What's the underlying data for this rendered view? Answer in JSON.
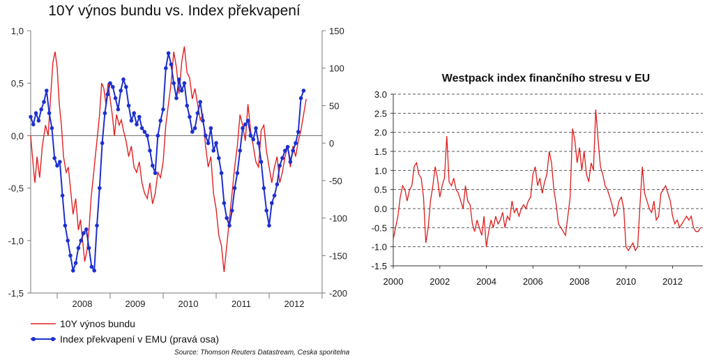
{
  "chart_data": [
    {
      "type": "line",
      "title": "10Y výnos bundu vs. Index překvapení",
      "x_tick_labels": [
        "2008",
        "2009",
        "2010",
        "2011",
        "2012"
      ],
      "y_left_ticks": [
        "1,0",
        "0,5",
        "0,0",
        "-0,5",
        "-1,0",
        "-1,5"
      ],
      "y_right_ticks": [
        "150",
        "100",
        "50",
        "0",
        "-50",
        "-100",
        "-150",
        "-200"
      ],
      "ylim_left": [
        -1.5,
        1.0
      ],
      "ylim_right": [
        -200,
        150
      ],
      "xlim": [
        2007.5,
        2013.0
      ],
      "grid": false,
      "legend_position": "bottom-left",
      "source": "Source: Thomson Reuters Datastream, Ceska sporitelna",
      "series": [
        {
          "name": "10Y výnos bundu",
          "axis": "left",
          "color": "#e02020",
          "x": [
            2007.5,
            2007.55,
            2007.58,
            2007.62,
            2007.67,
            2007.72,
            2007.78,
            2007.83,
            2007.88,
            2007.92,
            2007.96,
            2008.0,
            2008.04,
            2008.08,
            2008.12,
            2008.17,
            2008.21,
            2008.25,
            2008.3,
            2008.35,
            2008.4,
            2008.44,
            2008.48,
            2008.52,
            2008.56,
            2008.6,
            2008.64,
            2008.68,
            2008.72,
            2008.76,
            2008.8,
            2008.84,
            2008.88,
            2008.92,
            2008.96,
            2009.0,
            2009.04,
            2009.08,
            2009.12,
            2009.17,
            2009.21,
            2009.25,
            2009.3,
            2009.35,
            2009.4,
            2009.45,
            2009.5,
            2009.55,
            2009.6,
            2009.65,
            2009.7,
            2009.75,
            2009.8,
            2009.85,
            2009.9,
            2009.95,
            2010.0,
            2010.05,
            2010.1,
            2010.15,
            2010.2,
            2010.25,
            2010.3,
            2010.35,
            2010.4,
            2010.45,
            2010.5,
            2010.55,
            2010.6,
            2010.65,
            2010.7,
            2010.75,
            2010.8,
            2010.85,
            2010.9,
            2010.95,
            2011.0,
            2011.05,
            2011.1,
            2011.15,
            2011.2,
            2011.25,
            2011.3,
            2011.35,
            2011.4,
            2011.45,
            2011.5,
            2011.55,
            2011.6,
            2011.65,
            2011.7,
            2011.75,
            2011.8,
            2011.85,
            2011.9,
            2011.95,
            2012.0,
            2012.05,
            2012.1,
            2012.15,
            2012.2,
            2012.25,
            2012.3,
            2012.35,
            2012.4,
            2012.45,
            2012.5,
            2012.55,
            2012.6,
            2012.65,
            2012.7
          ],
          "values": [
            0.0,
            -0.3,
            -0.45,
            -0.2,
            -0.4,
            -0.1,
            0.1,
            0.0,
            0.4,
            0.7,
            0.8,
            0.65,
            0.3,
            0.1,
            -0.2,
            -0.35,
            -0.3,
            -0.5,
            -0.75,
            -0.6,
            -0.9,
            -0.8,
            -1.0,
            -1.2,
            -1.1,
            -0.9,
            -0.6,
            -0.4,
            -0.2,
            0.0,
            0.2,
            0.5,
            0.45,
            0.3,
            0.5,
            0.35,
            0.2,
            0.0,
            0.2,
            0.1,
            0.15,
            0.05,
            -0.05,
            -0.2,
            -0.1,
            -0.3,
            -0.35,
            -0.25,
            -0.45,
            -0.55,
            -0.6,
            -0.45,
            -0.65,
            -0.55,
            -0.35,
            -0.4,
            -0.25,
            0.1,
            0.3,
            0.5,
            0.8,
            0.65,
            0.4,
            0.7,
            0.85,
            0.6,
            0.55,
            0.35,
            0.45,
            0.3,
            0.15,
            0.2,
            -0.1,
            -0.3,
            -0.2,
            -0.55,
            -0.7,
            -0.95,
            -1.05,
            -1.3,
            -1.05,
            -0.8,
            -0.55,
            -0.3,
            -0.1,
            0.2,
            0.1,
            -0.05,
            0.3,
            0.05,
            -0.1,
            -0.25,
            -0.3,
            0.05,
            0.1,
            -0.15,
            -0.3,
            -0.45,
            -0.3,
            -0.2,
            -0.45,
            -0.35,
            -0.2,
            -0.1,
            -0.3,
            -0.1,
            -0.2,
            -0.05,
            0.05,
            0.2,
            0.35
          ]
        },
        {
          "name": "Index překvapení v EMU (pravá osa)",
          "axis": "right",
          "color": "#1c2fcf",
          "x": [
            2007.5,
            2007.55,
            2007.6,
            2007.65,
            2007.7,
            2007.75,
            2007.8,
            2007.85,
            2007.9,
            2007.95,
            2008.0,
            2008.05,
            2008.1,
            2008.15,
            2008.2,
            2008.25,
            2008.3,
            2008.35,
            2008.4,
            2008.45,
            2008.5,
            2008.55,
            2008.6,
            2008.65,
            2008.7,
            2008.75,
            2008.8,
            2008.85,
            2008.9,
            2008.95,
            2009.0,
            2009.05,
            2009.1,
            2009.15,
            2009.2,
            2009.25,
            2009.3,
            2009.35,
            2009.4,
            2009.45,
            2009.5,
            2009.55,
            2009.6,
            2009.65,
            2009.7,
            2009.75,
            2009.8,
            2009.85,
            2009.9,
            2009.95,
            2010.0,
            2010.05,
            2010.1,
            2010.15,
            2010.2,
            2010.25,
            2010.3,
            2010.35,
            2010.4,
            2010.45,
            2010.5,
            2010.55,
            2010.6,
            2010.65,
            2010.7,
            2010.75,
            2010.8,
            2010.85,
            2010.9,
            2010.95,
            2011.0,
            2011.05,
            2011.1,
            2011.15,
            2011.2,
            2011.25,
            2011.3,
            2011.35,
            2011.4,
            2011.45,
            2011.5,
            2011.55,
            2011.6,
            2011.65,
            2011.7,
            2011.75,
            2011.8,
            2011.85,
            2011.9,
            2011.95,
            2012.0,
            2012.05,
            2012.1,
            2012.15,
            2012.2,
            2012.25,
            2012.3,
            2012.35,
            2012.4,
            2012.45,
            2012.5,
            2012.55,
            2012.6,
            2012.65
          ],
          "values": [
            35,
            25,
            40,
            30,
            45,
            55,
            70,
            40,
            20,
            -20,
            -30,
            -25,
            -70,
            -110,
            -130,
            -150,
            -170,
            -160,
            -140,
            -130,
            -120,
            -115,
            -140,
            -165,
            -170,
            -110,
            -60,
            0,
            40,
            65,
            80,
            75,
            60,
            45,
            70,
            85,
            75,
            50,
            30,
            40,
            25,
            35,
            20,
            15,
            10,
            -10,
            -30,
            -40,
            10,
            30,
            45,
            100,
            120,
            105,
            80,
            60,
            85,
            70,
            80,
            50,
            35,
            15,
            20,
            40,
            55,
            30,
            10,
            0,
            20,
            -10,
            0,
            -20,
            -40,
            -80,
            -100,
            -110,
            -90,
            -60,
            -40,
            -10,
            20,
            25,
            30,
            10,
            5,
            20,
            0,
            -25,
            -60,
            -90,
            -110,
            -80,
            -70,
            -55,
            -30,
            -20,
            -10,
            -5,
            -25,
            -10,
            0,
            15,
            60,
            70
          ]
        }
      ]
    },
    {
      "type": "line",
      "title": "Westpack index finančního stresu v EU",
      "x_tick_labels": [
        "2000",
        "2002",
        "2004",
        "2006",
        "2008",
        "2010",
        "2012"
      ],
      "y_tick_labels": [
        "3.0",
        "2.5",
        "2.0",
        "1.5",
        "1.0",
        "0.5",
        "0.0",
        "-0.5",
        "-1.0",
        "-1.5"
      ],
      "ylim": [
        -1.5,
        3.0
      ],
      "xlim": [
        2000.0,
        2013.3
      ],
      "grid": "horizontal dashed",
      "series": [
        {
          "color": "#dd1a1a",
          "x": [
            2000.0,
            2000.1,
            2000.2,
            2000.3,
            2000.4,
            2000.5,
            2000.6,
            2000.7,
            2000.8,
            2000.9,
            2001.0,
            2001.1,
            2001.2,
            2001.3,
            2001.4,
            2001.5,
            2001.6,
            2001.7,
            2001.8,
            2001.9,
            2002.0,
            2002.1,
            2002.2,
            2002.3,
            2002.4,
            2002.5,
            2002.6,
            2002.7,
            2002.8,
            2002.9,
            2003.0,
            2003.1,
            2003.2,
            2003.3,
            2003.4,
            2003.5,
            2003.6,
            2003.7,
            2003.8,
            2003.9,
            2004.0,
            2004.1,
            2004.2,
            2004.3,
            2004.4,
            2004.5,
            2004.6,
            2004.7,
            2004.8,
            2004.9,
            2005.0,
            2005.1,
            2005.2,
            2005.3,
            2005.4,
            2005.5,
            2005.6,
            2005.7,
            2005.8,
            2005.9,
            2006.0,
            2006.1,
            2006.2,
            2006.3,
            2006.4,
            2006.5,
            2006.6,
            2006.7,
            2006.8,
            2006.9,
            2007.0,
            2007.1,
            2007.2,
            2007.3,
            2007.4,
            2007.5,
            2007.6,
            2007.7,
            2007.8,
            2007.9,
            2008.0,
            2008.1,
            2008.2,
            2008.3,
            2008.4,
            2008.5,
            2008.6,
            2008.7,
            2008.8,
            2008.9,
            2009.0,
            2009.1,
            2009.2,
            2009.3,
            2009.4,
            2009.5,
            2009.6,
            2009.7,
            2009.8,
            2009.9,
            2010.0,
            2010.1,
            2010.2,
            2010.3,
            2010.4,
            2010.5,
            2010.6,
            2010.7,
            2010.8,
            2010.9,
            2011.0,
            2011.1,
            2011.2,
            2011.3,
            2011.4,
            2011.5,
            2011.6,
            2011.7,
            2011.8,
            2011.9,
            2012.0,
            2012.1,
            2012.2,
            2012.3,
            2012.4,
            2012.5,
            2012.6,
            2012.7,
            2012.8,
            2012.9,
            2013.0,
            2013.1,
            2013.2
          ],
          "values": [
            -0.8,
            -0.5,
            -0.2,
            0.3,
            0.6,
            0.5,
            0.2,
            0.5,
            0.6,
            1.1,
            1.2,
            0.9,
            0.8,
            0.3,
            -0.9,
            -0.5,
            0.2,
            0.6,
            1.1,
            0.8,
            0.3,
            0.6,
            0.8,
            1.9,
            0.7,
            0.6,
            0.8,
            0.5,
            0.4,
            0.2,
            0.0,
            0.6,
            0.2,
            0.1,
            -0.4,
            -0.6,
            -0.3,
            -0.5,
            -0.7,
            -0.2,
            -1.0,
            -0.6,
            -0.3,
            -0.5,
            -0.2,
            -0.4,
            -0.3,
            -0.1,
            -0.5,
            -0.2,
            -0.3,
            0.2,
            -0.1,
            0.0,
            -0.2,
            0.0,
            0.1,
            0.0,
            0.2,
            0.3,
            0.9,
            1.1,
            0.6,
            0.8,
            0.4,
            0.7,
            0.9,
            1.5,
            1.2,
            0.5,
            0.1,
            -0.4,
            -0.5,
            -0.6,
            -0.7,
            -0.2,
            0.3,
            2.1,
            1.8,
            1.2,
            1.6,
            1.0,
            1.5,
            0.9,
            0.7,
            1.2,
            1.0,
            2.6,
            1.8,
            1.1,
            0.9,
            0.6,
            0.5,
            0.3,
            0.1,
            -0.2,
            -0.1,
            0.2,
            0.3,
            0.0,
            -1.0,
            -1.1,
            -1.0,
            -0.9,
            -1.1,
            -1.0,
            0.1,
            1.1,
            0.4,
            0.2,
            0.0,
            -0.1,
            0.2,
            -0.3,
            -0.2,
            0.4,
            0.5,
            0.6,
            0.4,
            0.2,
            -0.2,
            -0.4,
            -0.3,
            -0.5,
            -0.4,
            -0.3,
            -0.2,
            -0.3,
            -0.2,
            -0.5,
            -0.6,
            -0.6,
            -0.5
          ]
        }
      ]
    }
  ]
}
